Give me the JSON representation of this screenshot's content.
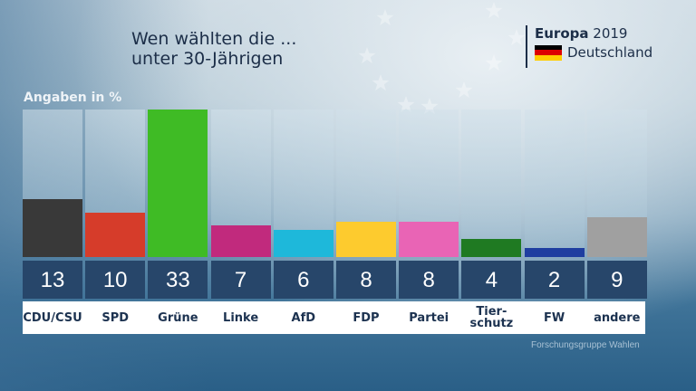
{
  "header": {
    "title_line1": "Wen wählten die ...",
    "title_line2": "unter 30-Jährigen",
    "brand_bold": "Europa",
    "brand_year": "2019",
    "brand_country": "Deutschland",
    "flag_colors": [
      "#000000",
      "#dd0000",
      "#ffce00"
    ]
  },
  "source": "Forschungsgruppe Wahlen",
  "chart_data": {
    "type": "bar",
    "title": "Wen wählten die ... unter 30-Jährigen",
    "ylabel": "Angaben in %",
    "xlabel": "",
    "ylim": [
      0,
      33
    ],
    "grid": false,
    "legend": "none",
    "categories": [
      "CDU/CSU",
      "SPD",
      "Grüne",
      "Linke",
      "AfD",
      "FDP",
      "Partei",
      "Tier-\nschutz",
      "FW",
      "andere"
    ],
    "values": [
      13,
      10,
      33,
      7,
      6,
      8,
      8,
      4,
      2,
      9
    ],
    "colors": [
      "#393939",
      "#d63c2a",
      "#3fbb25",
      "#c12a7d",
      "#1eb8da",
      "#fdcb2e",
      "#e964b5",
      "#1f7a22",
      "#1f3ea0",
      "#a0a0a0"
    ],
    "value_labels": [
      "13",
      "10",
      "33",
      "7",
      "6",
      "8",
      "8",
      "4",
      "2",
      "9"
    ]
  }
}
